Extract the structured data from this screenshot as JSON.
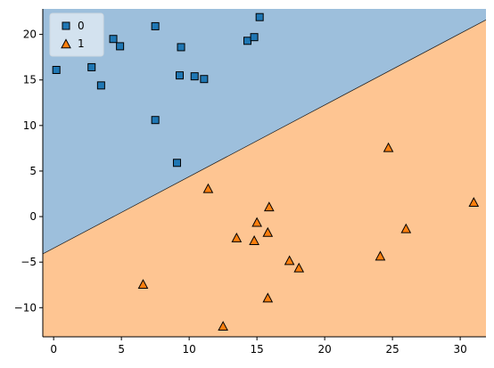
{
  "chart_data": {
    "type": "scatter",
    "title": "",
    "xlabel": "",
    "ylabel": "",
    "xlim": [
      -0.8,
      31.9
    ],
    "ylim": [
      -13.2,
      22.8
    ],
    "xticks": [
      0,
      5,
      10,
      15,
      20,
      25,
      30
    ],
    "yticks": [
      -10,
      -5,
      0,
      5,
      10,
      15,
      20
    ],
    "grid": false,
    "legend_position": "top-left",
    "decision_boundary": {
      "x": [
        -0.8,
        31.9
      ],
      "y": [
        -4.1,
        21.6
      ]
    },
    "regions": [
      {
        "class": "0",
        "side": "above",
        "color": "#9dbfdc"
      },
      {
        "class": "1",
        "side": "below",
        "color": "#fec592"
      }
    ],
    "series": [
      {
        "name": "0",
        "marker": "square",
        "color": "#1f77b4",
        "points": [
          [
            0.2,
            16.1
          ],
          [
            2.8,
            16.4
          ],
          [
            3.5,
            14.4
          ],
          [
            4.4,
            19.5
          ],
          [
            4.9,
            18.7
          ],
          [
            7.5,
            20.9
          ],
          [
            7.5,
            10.6
          ],
          [
            9.1,
            5.9
          ],
          [
            9.3,
            15.5
          ],
          [
            9.4,
            18.6
          ],
          [
            10.4,
            15.4
          ],
          [
            11.1,
            15.1
          ],
          [
            14.3,
            19.3
          ],
          [
            14.8,
            19.7
          ],
          [
            15.2,
            21.9
          ]
        ]
      },
      {
        "name": "1",
        "marker": "triangle",
        "color": "#ff7f0e",
        "points": [
          [
            6.6,
            -7.5
          ],
          [
            11.4,
            3.0
          ],
          [
            12.5,
            -12.1
          ],
          [
            13.5,
            -2.4
          ],
          [
            14.8,
            -2.7
          ],
          [
            15.0,
            -0.7
          ],
          [
            15.8,
            -1.8
          ],
          [
            15.8,
            -9.0
          ],
          [
            15.9,
            1.0
          ],
          [
            17.4,
            -4.9
          ],
          [
            18.1,
            -5.7
          ],
          [
            24.1,
            -4.4
          ],
          [
            24.7,
            7.5
          ],
          [
            26.0,
            -1.4
          ],
          [
            31.0,
            1.5
          ]
        ]
      }
    ]
  }
}
